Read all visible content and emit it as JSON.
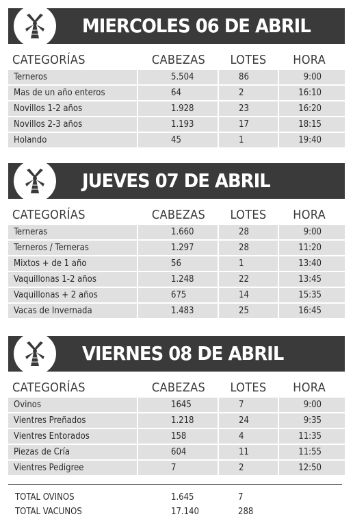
{
  "logo_icon": "windmill-icon",
  "headers": {
    "categoria": "CATEGORÍAS",
    "cabezas": "CABEZAS",
    "lotes": "LOTES",
    "hora": "HORA"
  },
  "days": [
    {
      "title": "MIERCOLES 06 DE ABRIL",
      "rows": [
        {
          "categoria": "Terneros",
          "cabezas": "5.504",
          "lotes": "86",
          "hora": "9:00"
        },
        {
          "categoria": "Mas de un año enteros",
          "cabezas": "64",
          "lotes": "2",
          "hora": "16:10"
        },
        {
          "categoria": "Novillos 1-2 años",
          "cabezas": "1.928",
          "lotes": "23",
          "hora": "16:20"
        },
        {
          "categoria": "Novillos 2-3 años",
          "cabezas": "1.193",
          "lotes": "17",
          "hora": "18:15"
        },
        {
          "categoria": "Holando",
          "cabezas": "45",
          "lotes": "1",
          "hora": "19:40"
        }
      ]
    },
    {
      "title": "JUEVES 07 DE ABRIL",
      "rows": [
        {
          "categoria": "Terneras",
          "cabezas": "1.660",
          "lotes": "28",
          "hora": "9:00"
        },
        {
          "categoria": "Terneros / Terneras",
          "cabezas": "1.297",
          "lotes": "28",
          "hora": "11:20"
        },
        {
          "categoria": "Mixtos + de 1 año",
          "cabezas": "56",
          "lotes": "1",
          "hora": "13:40"
        },
        {
          "categoria": "Vaquillonas 1-2 años",
          "cabezas": "1.248",
          "lotes": "22",
          "hora": "13:45"
        },
        {
          "categoria": "Vaquillonas + 2 años",
          "cabezas": "675",
          "lotes": "14",
          "hora": "15:35"
        },
        {
          "categoria": "Vacas de Invernada",
          "cabezas": "1.483",
          "lotes": "25",
          "hora": "16:45"
        }
      ]
    },
    {
      "title": "VIERNES 08 DE ABRIL",
      "rows": [
        {
          "categoria": "Ovinos",
          "cabezas": "1645",
          "lotes": "7",
          "hora": "9:00"
        },
        {
          "categoria": "Vientres Preñados",
          "cabezas": "1.218",
          "lotes": "24",
          "hora": "9:35"
        },
        {
          "categoria": "Vientres Entorados",
          "cabezas": "158",
          "lotes": "4",
          "hora": "11:35"
        },
        {
          "categoria": "Piezas de Cría",
          "cabezas": "604",
          "lotes": "11",
          "hora": "11:55"
        },
        {
          "categoria": "Vientres  Pedigree",
          "cabezas": "7",
          "lotes": "2",
          "hora": "12:50"
        }
      ]
    }
  ],
  "totals": [
    {
      "label": "TOTAL OVINOS",
      "cabezas": "1.645",
      "lotes": "7"
    },
    {
      "label": "TOTAL VACUNOS",
      "cabezas": "17.140",
      "lotes": "288"
    }
  ]
}
